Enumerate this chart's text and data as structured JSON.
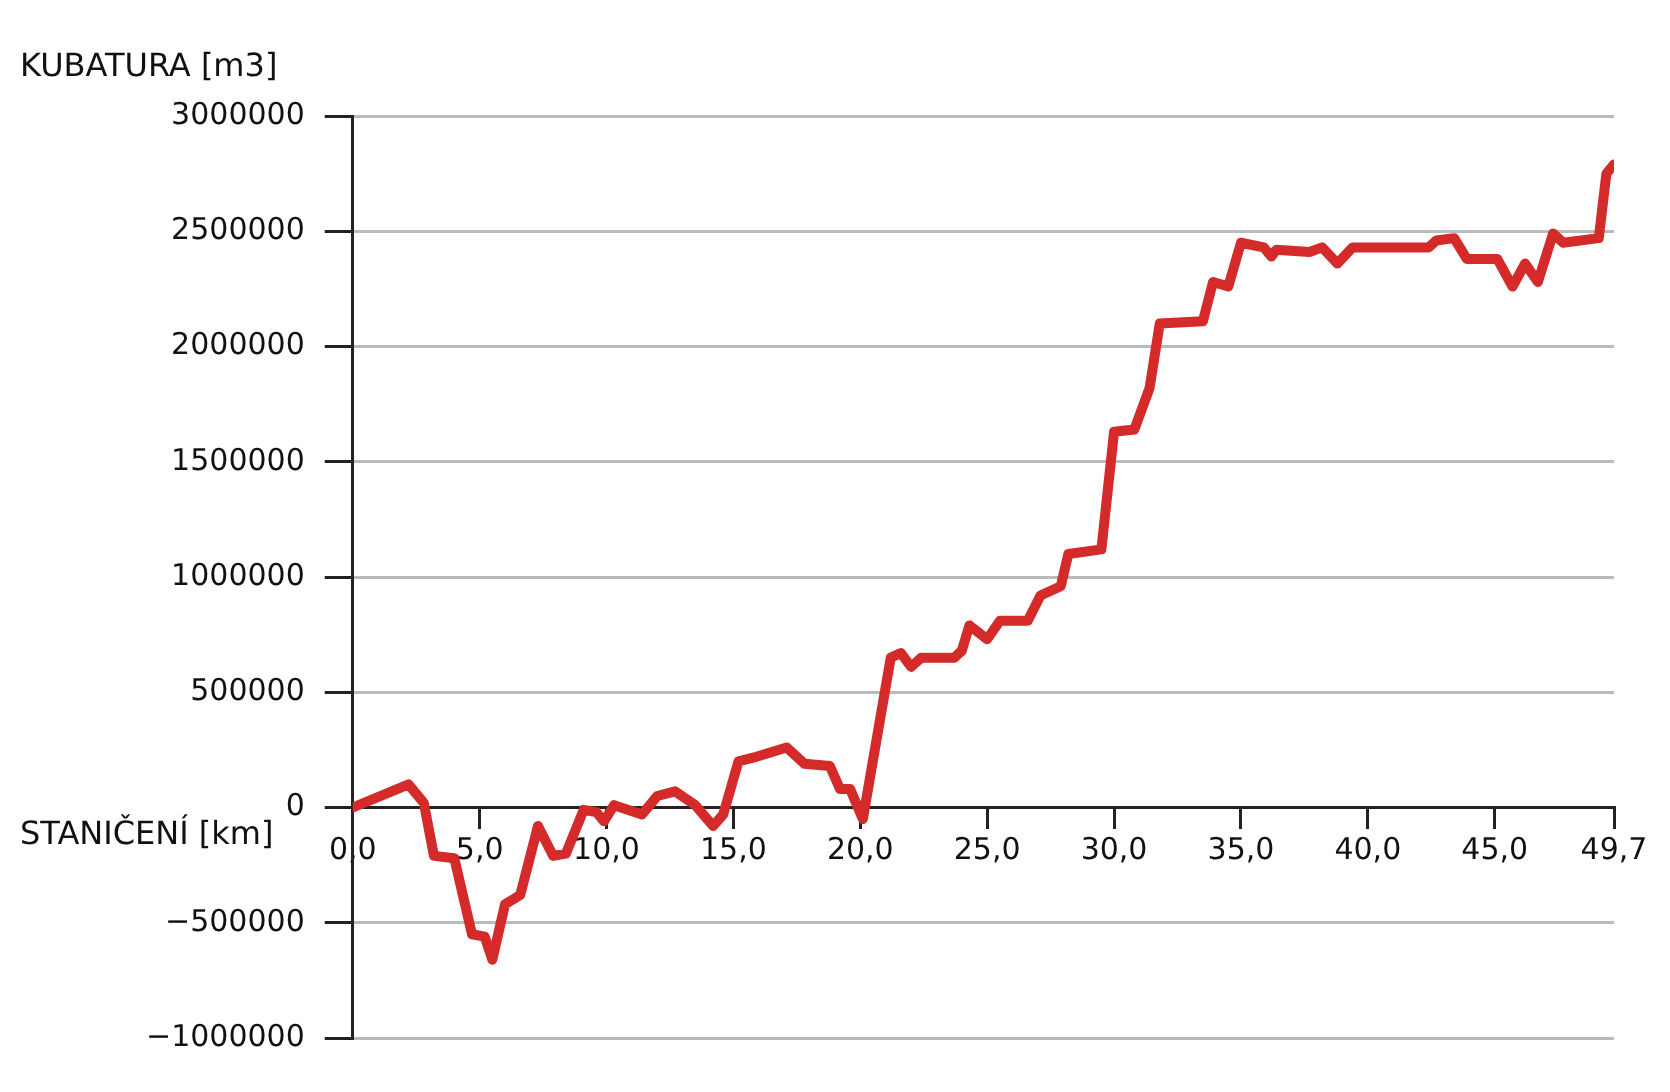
{
  "chart_data": {
    "type": "line",
    "xlabel": "STANIČENÍ [km]",
    "ylabel": "KUBATURA [m3]",
    "x": [
      0,
      2.2,
      2.8,
      3.2,
      4.0,
      4.7,
      5.2,
      5.5,
      6.0,
      6.6,
      7.3,
      7.9,
      8.4,
      9.1,
      9.6,
      9.9,
      10.3,
      11.4,
      12.0,
      12.7,
      13.5,
      14.2,
      14.6,
      15.2,
      15.9,
      17.1,
      17.8,
      18.8,
      19.2,
      19.6,
      20.1,
      21.2,
      21.6,
      22.0,
      22.4,
      23.7,
      24.0,
      24.3,
      25.0,
      25.5,
      26.6,
      27.1,
      27.9,
      28.2,
      29.5,
      30.0,
      30.8,
      31.4,
      31.8,
      33.5,
      33.9,
      34.5,
      35.0,
      35.9,
      36.2,
      36.4,
      37.7,
      38.2,
      38.8,
      39.4,
      42.4,
      42.7,
      43.4,
      43.9,
      45.1,
      45.7,
      46.2,
      46.7,
      47.3,
      47.7,
      49.1,
      49.4,
      49.7
    ],
    "series": [
      {
        "color": "#d42a2a",
        "values": [
          0,
          100000,
          20000,
          -210000,
          -220000,
          -550000,
          -560000,
          -660000,
          -420000,
          -380000,
          -80000,
          -210000,
          -200000,
          -10000,
          -20000,
          -60000,
          10000,
          -30000,
          50000,
          70000,
          10000,
          -80000,
          -30000,
          200000,
          220000,
          260000,
          190000,
          180000,
          80000,
          80000,
          -50000,
          650000,
          670000,
          610000,
          650000,
          650000,
          680000,
          790000,
          730000,
          810000,
          810000,
          920000,
          960000,
          1100000,
          1120000,
          1630000,
          1640000,
          1820000,
          2100000,
          2110000,
          2280000,
          2260000,
          2450000,
          2430000,
          2390000,
          2420000,
          2410000,
          2430000,
          2360000,
          2430000,
          2430000,
          2460000,
          2470000,
          2380000,
          2380000,
          2260000,
          2360000,
          2280000,
          2490000,
          2450000,
          2470000,
          2750000,
          2790000
        ]
      }
    ],
    "xlim": [
      0,
      49.7
    ],
    "xticks": [
      {
        "value": 0,
        "label": "0,0"
      },
      {
        "value": 5,
        "label": "5,0"
      },
      {
        "value": 10,
        "label": "10,0"
      },
      {
        "value": 15,
        "label": "15,0"
      },
      {
        "value": 20,
        "label": "20,0"
      },
      {
        "value": 25,
        "label": "25,0"
      },
      {
        "value": 30,
        "label": "30,0"
      },
      {
        "value": 35,
        "label": "35,0"
      },
      {
        "value": 40,
        "label": "40,0"
      },
      {
        "value": 45,
        "label": "45,0"
      },
      {
        "value": 49.7,
        "label": "49,7"
      }
    ],
    "ylim": [
      -1000000,
      3000000
    ],
    "yticks": [
      {
        "value": -1000000,
        "label": "−1000000"
      },
      {
        "value": -500000,
        "label": "−500000"
      },
      0,
      500000,
      1000000,
      1500000,
      2000000,
      2500000,
      3000000
    ],
    "grid": "y",
    "marker": "none",
    "line_style": "solid",
    "legend": false
  }
}
